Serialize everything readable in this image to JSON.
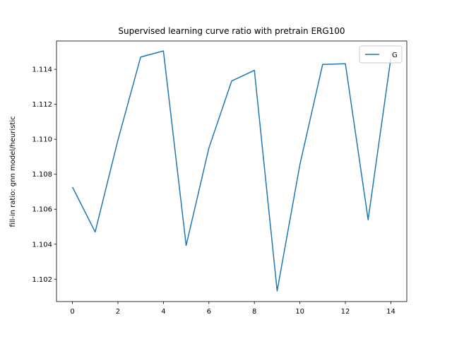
{
  "chart_data": {
    "type": "line",
    "title": "Supervised learning curve ratio with pretrain ERG100",
    "xlabel": "",
    "ylabel": "fill-in ratio: gnn model/heuristic",
    "xlim": [
      -0.7,
      14.7
    ],
    "ylim": [
      1.10072,
      1.11562
    ],
    "xticks": [
      0,
      2,
      4,
      6,
      8,
      10,
      12,
      14
    ],
    "yticks": [
      1.102,
      1.104,
      1.106,
      1.108,
      1.11,
      1.112,
      1.114
    ],
    "ytick_labels": [
      "1.102",
      "1.104",
      "1.106",
      "1.108",
      "1.110",
      "1.112",
      "1.114"
    ],
    "grid": false,
    "legend_position": "top-right",
    "series": [
      {
        "name": "G",
        "color": "#1f77b4",
        "x": [
          0,
          1,
          2,
          3,
          4,
          5,
          6,
          7,
          8,
          9,
          10,
          11,
          12,
          13,
          14
        ],
        "y": [
          1.10727,
          1.1047,
          1.10995,
          1.1147,
          1.11505,
          1.10393,
          1.1095,
          1.11333,
          1.11394,
          1.10133,
          1.10855,
          1.11428,
          1.11432,
          1.1054,
          1.11465
        ]
      }
    ]
  }
}
